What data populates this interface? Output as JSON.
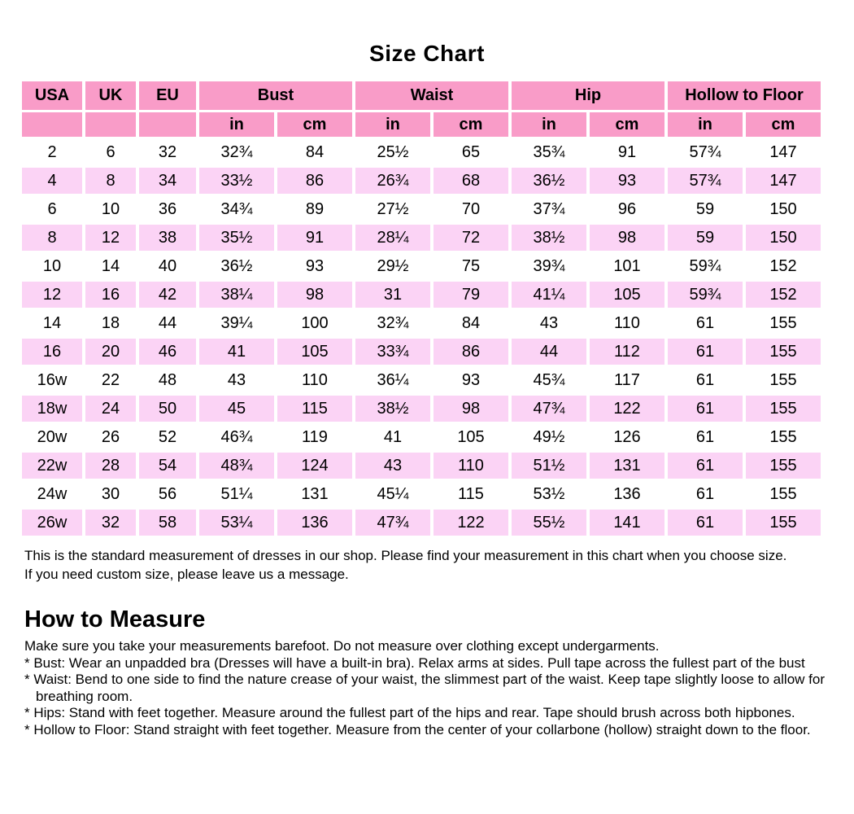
{
  "page": {
    "title": "Size Chart"
  },
  "colors": {
    "header_pink": "#F99CC8",
    "alt_row_pink": "#FBD3F5",
    "row_white": "#FFFFFF",
    "text": "#000000"
  },
  "table": {
    "group_headers": [
      {
        "label": "USA",
        "span": 1
      },
      {
        "label": "UK",
        "span": 1
      },
      {
        "label": "EU",
        "span": 1
      },
      {
        "label": "Bust",
        "span": 2
      },
      {
        "label": "Waist",
        "span": 2
      },
      {
        "label": "Hip",
        "span": 2
      },
      {
        "label": "Hollow to Floor",
        "span": 2
      }
    ],
    "unit_headers": [
      "",
      "",
      "",
      "in",
      "cm",
      "in",
      "cm",
      "in",
      "cm",
      "in",
      "cm"
    ],
    "rows": [
      [
        "2",
        "6",
        "32",
        "32¾",
        "84",
        "25½",
        "65",
        "35¾",
        "91",
        "57¾",
        "147"
      ],
      [
        "4",
        "8",
        "34",
        "33½",
        "86",
        "26¾",
        "68",
        "36½",
        "93",
        "57¾",
        "147"
      ],
      [
        "6",
        "10",
        "36",
        "34¾",
        "89",
        "27½",
        "70",
        "37¾",
        "96",
        "59",
        "150"
      ],
      [
        "8",
        "12",
        "38",
        "35½",
        "91",
        "28¼",
        "72",
        "38½",
        "98",
        "59",
        "150"
      ],
      [
        "10",
        "14",
        "40",
        "36½",
        "93",
        "29½",
        "75",
        "39¾",
        "101",
        "59¾",
        "152"
      ],
      [
        "12",
        "16",
        "42",
        "38¼",
        "98",
        "31",
        "79",
        "41¼",
        "105",
        "59¾",
        "152"
      ],
      [
        "14",
        "18",
        "44",
        "39¼",
        "100",
        "32¾",
        "84",
        "43",
        "110",
        "61",
        "155"
      ],
      [
        "16",
        "20",
        "46",
        "41",
        "105",
        "33¾",
        "86",
        "44",
        "112",
        "61",
        "155"
      ],
      [
        "16w",
        "22",
        "48",
        "43",
        "110",
        "36¼",
        "93",
        "45¾",
        "117",
        "61",
        "155"
      ],
      [
        "18w",
        "24",
        "50",
        "45",
        "115",
        "38½",
        "98",
        "47¾",
        "122",
        "61",
        "155"
      ],
      [
        "20w",
        "26",
        "52",
        "46¾",
        "119",
        "41",
        "105",
        "49½",
        "126",
        "61",
        "155"
      ],
      [
        "22w",
        "28",
        "54",
        "48¾",
        "124",
        "43",
        "110",
        "51½",
        "131",
        "61",
        "155"
      ],
      [
        "24w",
        "30",
        "56",
        "51¼",
        "131",
        "45¼",
        "115",
        "53½",
        "136",
        "61",
        "155"
      ],
      [
        "26w",
        "32",
        "58",
        "53¼",
        "136",
        "47¾",
        "122",
        "55½",
        "141",
        "61",
        "155"
      ]
    ]
  },
  "notes": {
    "line1": "This is the standard measurement of dresses in our shop. Please find your measurement in this chart when you choose size.",
    "line2": "If you need custom size, please leave us a message."
  },
  "how_to_measure": {
    "heading": "How to Measure",
    "intro": "Make sure you take your measurements barefoot. Do not measure over clothing except undergarments.",
    "items": [
      "* Bust: Wear an unpadded bra (Dresses will have a built-in bra). Relax arms at sides. Pull tape across the fullest part of the bust",
      "* Waist: Bend to one side to find the nature crease of your waist, the slimmest part of the waist. Keep tape slightly loose to allow for breathing room.",
      "* Hips: Stand with feet together. Measure around the fullest part of the hips and rear. Tape should brush across both hipbones.",
      "* Hollow to Floor: Stand straight with feet together. Measure from the center of your collarbone (hollow) straight down to the floor."
    ]
  }
}
